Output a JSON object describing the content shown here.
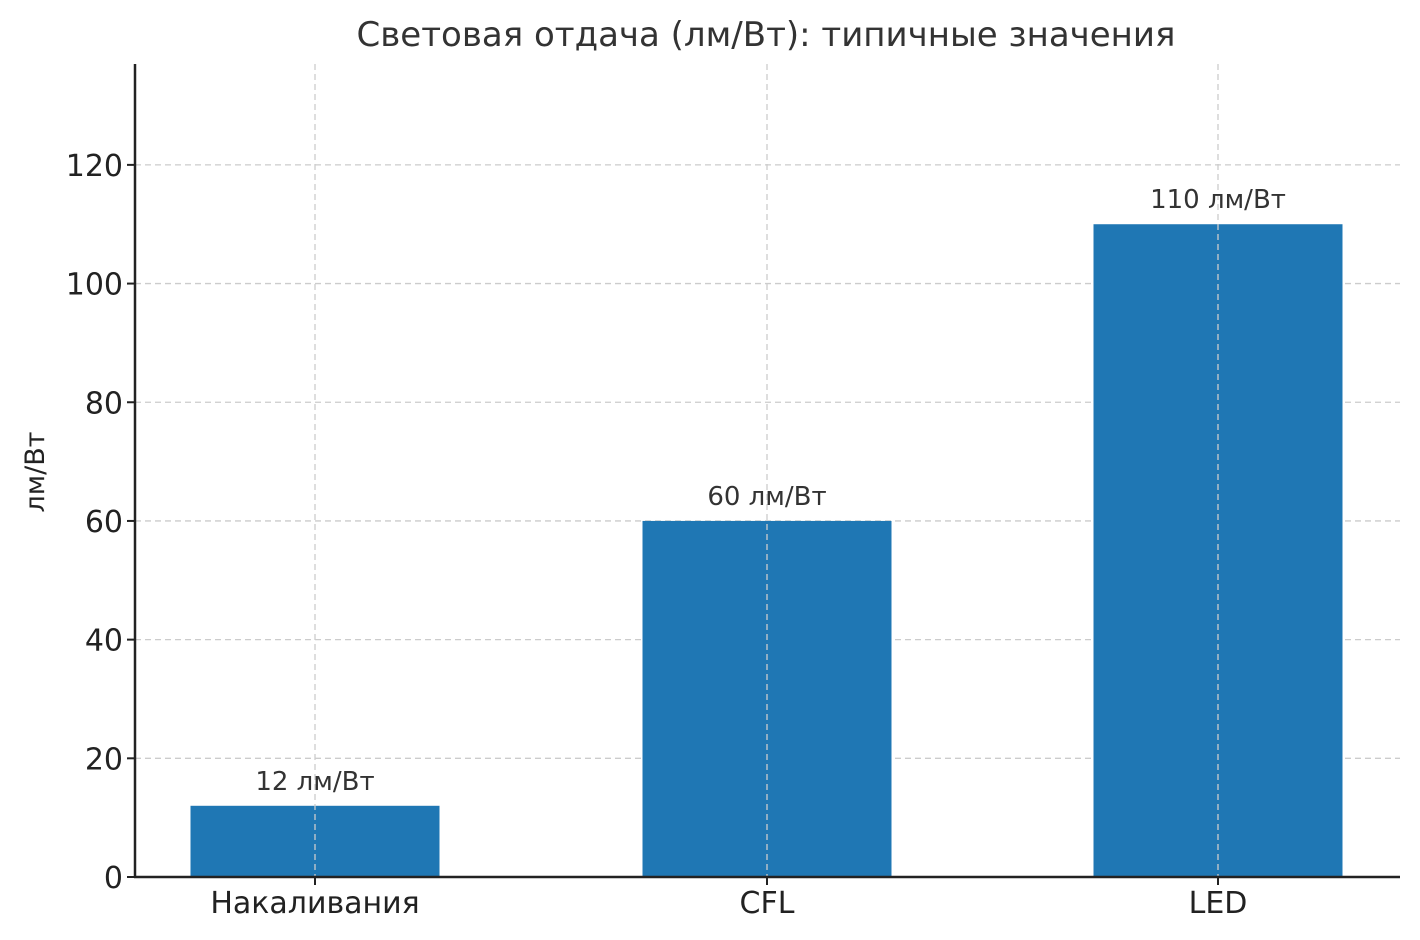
{
  "chart_data": {
    "type": "bar",
    "title": "Световая отдача (лм/Вт): типичные значения",
    "xlabel": "",
    "ylabel": "лм/Вт",
    "categories": [
      "Накаливания",
      "CFL",
      "LED"
    ],
    "values": [
      12,
      60,
      110
    ],
    "data_labels": [
      "12 лм/Вт",
      "60 лм/Вт",
      "110 лм/Вт"
    ],
    "yticks": [
      0,
      20,
      40,
      60,
      80,
      100,
      120
    ],
    "ylim": [
      0,
      137
    ],
    "grid": true,
    "bar_color": "#1f77b4"
  }
}
